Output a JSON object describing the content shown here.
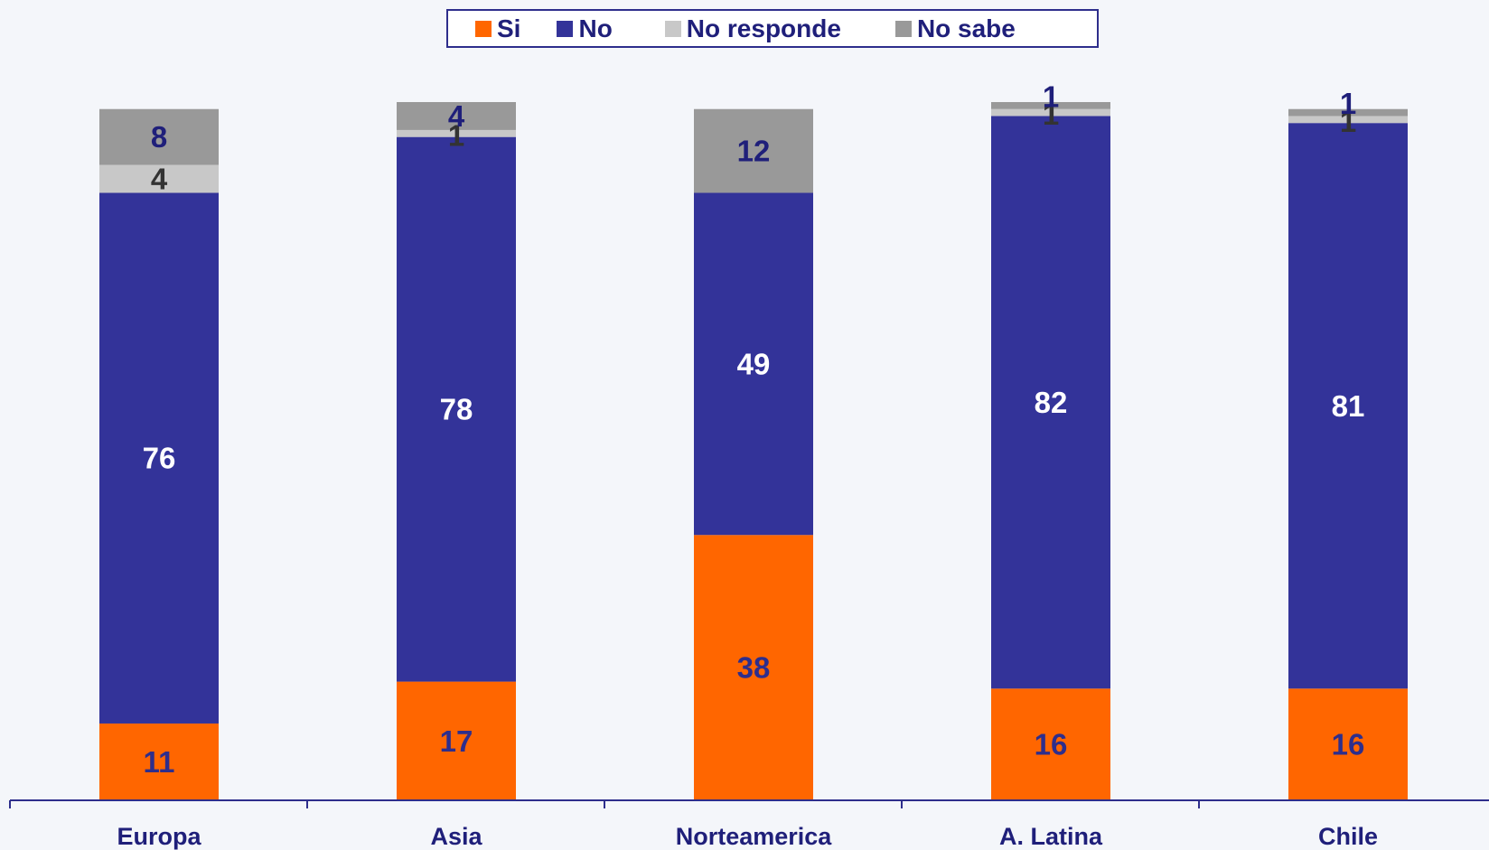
{
  "chart_data": {
    "type": "bar",
    "stacked": true,
    "categories": [
      "Europa",
      "Asia",
      "Norteamerica",
      "A. Latina",
      "Chile"
    ],
    "series": [
      {
        "name": "Si",
        "color": "#FF6600",
        "label_color": "#2E2E8C",
        "values": [
          11,
          17,
          38,
          16,
          16
        ]
      },
      {
        "name": "No",
        "color": "#333399",
        "label_color": "#FFFFFF",
        "values": [
          76,
          78,
          49,
          82,
          81
        ]
      },
      {
        "name": "No responde",
        "color": "#C8C8C8",
        "label_color": "#333333",
        "values": [
          4,
          1,
          0,
          1,
          1
        ]
      },
      {
        "name": "No sabe",
        "color": "#999999",
        "label_color": "#1F1F7A",
        "values": [
          8,
          4,
          12,
          1,
          1
        ]
      }
    ],
    "ylim": [
      0,
      100
    ],
    "legend_position": "top-center",
    "grid": false
  }
}
